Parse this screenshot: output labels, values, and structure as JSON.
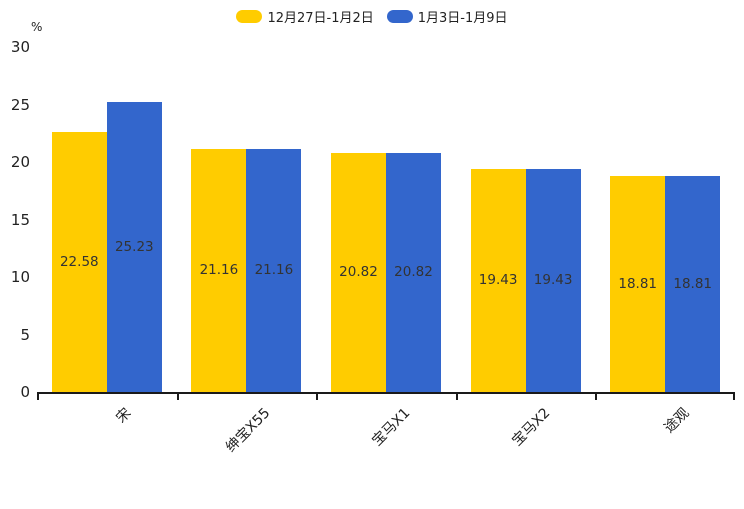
{
  "chart_data": {
    "type": "bar",
    "title": "",
    "xlabel": "",
    "ylabel": "%",
    "ylim": [
      0,
      30
    ],
    "yticks": [
      0,
      5,
      10,
      15,
      20,
      25,
      30
    ],
    "grid": false,
    "legend_position": "top",
    "categories": [
      "宋",
      "绅宝X55",
      "宝马X1",
      "宝马X2",
      "途观"
    ],
    "series": [
      {
        "name": "12月27日-1月2日",
        "color": "#FFCC00",
        "values": [
          22.58,
          21.16,
          20.82,
          19.43,
          18.81
        ]
      },
      {
        "name": "1月3日-1月9日",
        "color": "#3366CC",
        "values": [
          25.23,
          21.16,
          20.82,
          19.43,
          18.81
        ]
      }
    ],
    "value_label_color": "#333333",
    "axis_color": "#1a1a1a"
  }
}
